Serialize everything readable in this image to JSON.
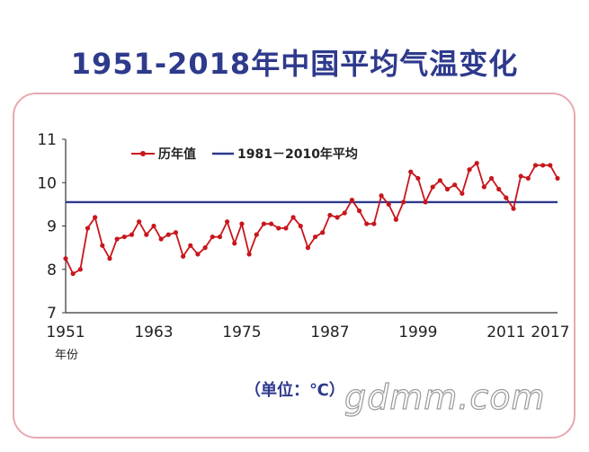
{
  "title": "1951-2018年中国平均气温变化",
  "unit_note": "（单位：℃）",
  "watermark": "gdmm.com",
  "chart_data": {
    "type": "line",
    "title": "1951-2018年中国平均气温变化",
    "xlabel": "年份",
    "ylabel": "",
    "ylim": [
      7,
      11
    ],
    "yticks": [
      7,
      8,
      9,
      10,
      11
    ],
    "xtick_labels": [
      "1951",
      "1963",
      "1975",
      "1987",
      "1999",
      "2011",
      "2017"
    ],
    "grid": false,
    "legend_position": "top",
    "reference_line": {
      "name": "1981－2010年平均",
      "value": 9.55,
      "color": "#2e3a8c"
    },
    "series": [
      {
        "name": "历年值",
        "color": "#c8161d",
        "x": [
          1951,
          1952,
          1953,
          1954,
          1955,
          1956,
          1957,
          1958,
          1959,
          1960,
          1961,
          1962,
          1963,
          1964,
          1965,
          1966,
          1967,
          1968,
          1969,
          1970,
          1971,
          1972,
          1973,
          1974,
          1975,
          1976,
          1977,
          1978,
          1979,
          1980,
          1981,
          1982,
          1983,
          1984,
          1985,
          1986,
          1987,
          1988,
          1989,
          1990,
          1991,
          1992,
          1993,
          1994,
          1995,
          1996,
          1997,
          1998,
          1999,
          2000,
          2001,
          2002,
          2003,
          2004,
          2005,
          2006,
          2007,
          2008,
          2009,
          2010,
          2011,
          2012,
          2013,
          2014,
          2015,
          2016,
          2017,
          2018
        ],
        "values": [
          8.25,
          7.9,
          8.0,
          8.95,
          9.2,
          8.55,
          8.25,
          8.7,
          8.75,
          8.8,
          9.1,
          8.8,
          9.0,
          8.7,
          8.8,
          8.85,
          8.3,
          8.55,
          8.35,
          8.5,
          8.75,
          8.75,
          9.1,
          8.6,
          9.05,
          8.35,
          8.8,
          9.05,
          9.05,
          8.95,
          8.95,
          9.2,
          9.0,
          8.5,
          8.75,
          8.85,
          9.25,
          9.2,
          9.3,
          9.6,
          9.35,
          9.05,
          9.05,
          9.7,
          9.5,
          9.15,
          9.55,
          10.25,
          10.1,
          9.55,
          9.9,
          10.05,
          9.85,
          9.95,
          9.75,
          10.3,
          10.45,
          9.9,
          10.1,
          9.85,
          9.65,
          9.4,
          10.15,
          10.1,
          10.4,
          10.4,
          10.4,
          10.1
        ]
      }
    ]
  }
}
